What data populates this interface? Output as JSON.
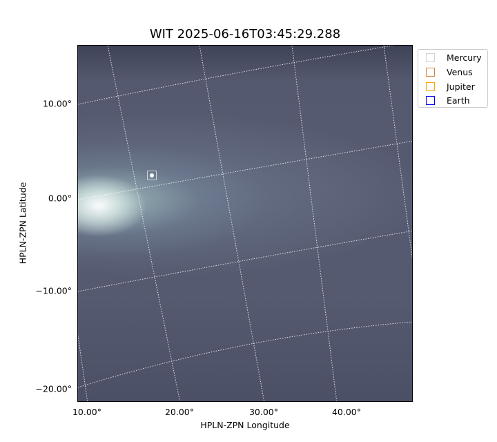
{
  "chart_data": {
    "type": "heatmap",
    "title": "WIT 2025-06-16T03:45:29.288",
    "xlabel": "HPLN-ZPN Longitude",
    "ylabel": "HPLN-ZPN Latitude",
    "x_ticks": [
      "10.00°",
      "20.00°",
      "30.00°",
      "40.00°"
    ],
    "y_ticks": [
      "10.00°",
      "0.00°",
      "−10.00°",
      "−20.00°"
    ],
    "grid": true,
    "colormap": "bone",
    "legend_position": "outside-right",
    "legend": [
      {
        "name": "Mercury",
        "color": "#d3d3d3"
      },
      {
        "name": "Venus",
        "color": "#d2843f"
      },
      {
        "name": "Jupiter",
        "color": "#ffa500"
      },
      {
        "name": "Earth",
        "color": "#0000ff"
      }
    ],
    "markers": [
      {
        "name": "Mercury",
        "lon": 16.5,
        "lat": 2.5
      }
    ]
  }
}
